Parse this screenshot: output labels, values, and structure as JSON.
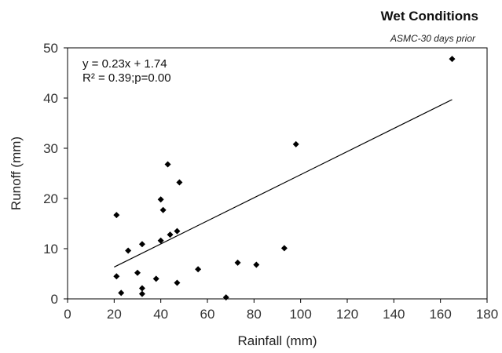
{
  "chart_data": {
    "type": "scatter",
    "title": "Wet Conditions",
    "subtitle": "ASMC-30 days prior",
    "xlabel": "Rainfall (mm)",
    "ylabel": "Runoff (mm)",
    "xlim": [
      0,
      180
    ],
    "ylim": [
      0,
      50
    ],
    "xticks": [
      0,
      20,
      40,
      60,
      80,
      100,
      120,
      140,
      160,
      180
    ],
    "yticks": [
      0,
      10,
      20,
      30,
      40,
      50
    ],
    "grid": false,
    "marker": "diamond",
    "points": [
      {
        "x": 21,
        "y": 16.7
      },
      {
        "x": 21,
        "y": 4.5
      },
      {
        "x": 23,
        "y": 1.2
      },
      {
        "x": 26,
        "y": 9.6
      },
      {
        "x": 30,
        "y": 5.2
      },
      {
        "x": 32,
        "y": 10.9
      },
      {
        "x": 32,
        "y": 2.1
      },
      {
        "x": 32,
        "y": 1.0
      },
      {
        "x": 38,
        "y": 4.0
      },
      {
        "x": 40,
        "y": 19.8
      },
      {
        "x": 40,
        "y": 11.6
      },
      {
        "x": 41,
        "y": 17.7
      },
      {
        "x": 43,
        "y": 26.8
      },
      {
        "x": 44,
        "y": 12.8
      },
      {
        "x": 47,
        "y": 13.5
      },
      {
        "x": 47,
        "y": 3.2
      },
      {
        "x": 48,
        "y": 23.2
      },
      {
        "x": 56,
        "y": 5.9
      },
      {
        "x": 68,
        "y": 0.3
      },
      {
        "x": 73,
        "y": 7.2
      },
      {
        "x": 81,
        "y": 6.8
      },
      {
        "x": 93,
        "y": 10.1
      },
      {
        "x": 98,
        "y": 30.8
      },
      {
        "x": 165,
        "y": 47.8
      }
    ],
    "trendline": {
      "slope": 0.23,
      "intercept": 1.74,
      "x_range": [
        20,
        165
      ]
    },
    "annotations": [
      "y = 0.23x + 1.74",
      "R² = 0.39;p=0.00"
    ]
  }
}
